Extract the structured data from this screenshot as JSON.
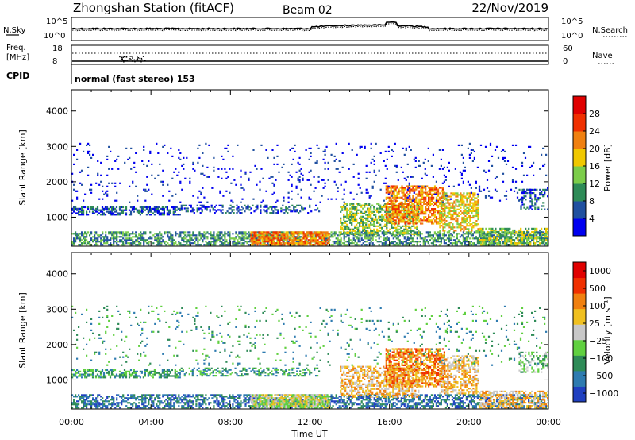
{
  "header": {
    "title": "Zhongshan Station (fitACF)",
    "beam": "Beam 02",
    "date": "22/Nov/2019"
  },
  "nsky_panel": {
    "left_label": "N.Sky",
    "right_label": "N.Search",
    "left_ticks": [
      "10^5",
      "10^0"
    ],
    "right_ticks": [
      "10^5",
      "10^0"
    ]
  },
  "freq_panel": {
    "left_label_1": "Freq.",
    "left_label_2": "[MHz]",
    "left_ticks": [
      "18",
      "8"
    ],
    "right_ticks": [
      "60",
      "0"
    ],
    "right_label": "Nave",
    "cpid_label": "CPID",
    "mode_text": "normal (fast stereo) 153"
  },
  "chart_data": [
    {
      "type": "heatmap",
      "name": "power",
      "ylabel": "Slant Range [km]",
      "xlabel": "",
      "y_ticks": [
        "1000",
        "2000",
        "3000",
        "4000"
      ],
      "ylim": [
        180,
        4600
      ],
      "colorbar_label": "Power [dB]",
      "colorbar_ticks": [
        "4",
        "8",
        "12",
        "16",
        "20",
        "24",
        "28"
      ],
      "colors": [
        "#0000f0",
        "#2050a0",
        "#2e8b57",
        "#7ccd4a",
        "#f0c800",
        "#f08010",
        "#f03000",
        "#e00000"
      ]
    },
    {
      "type": "heatmap",
      "name": "velocity",
      "ylabel": "Slant Range [km]",
      "xlabel": "Time UT",
      "x_ticks": [
        "00:00",
        "04:00",
        "08:00",
        "12:00",
        "16:00",
        "20:00",
        "00:00"
      ],
      "y_ticks": [
        "1000",
        "2000",
        "3000",
        "4000"
      ],
      "ylim": [
        180,
        4600
      ],
      "colorbar_label": "Velocity [m s⁻¹]",
      "colorbar_ticks": [
        "1000",
        "500",
        "100",
        "25",
        "−25",
        "−100",
        "−500",
        "−1000"
      ],
      "colors": [
        "#2040c0",
        "#2e7bb0",
        "#2e8b57",
        "#60d040",
        "#c8c8c8",
        "#f0c020",
        "#f08010",
        "#f03000",
        "#e00000"
      ]
    }
  ]
}
